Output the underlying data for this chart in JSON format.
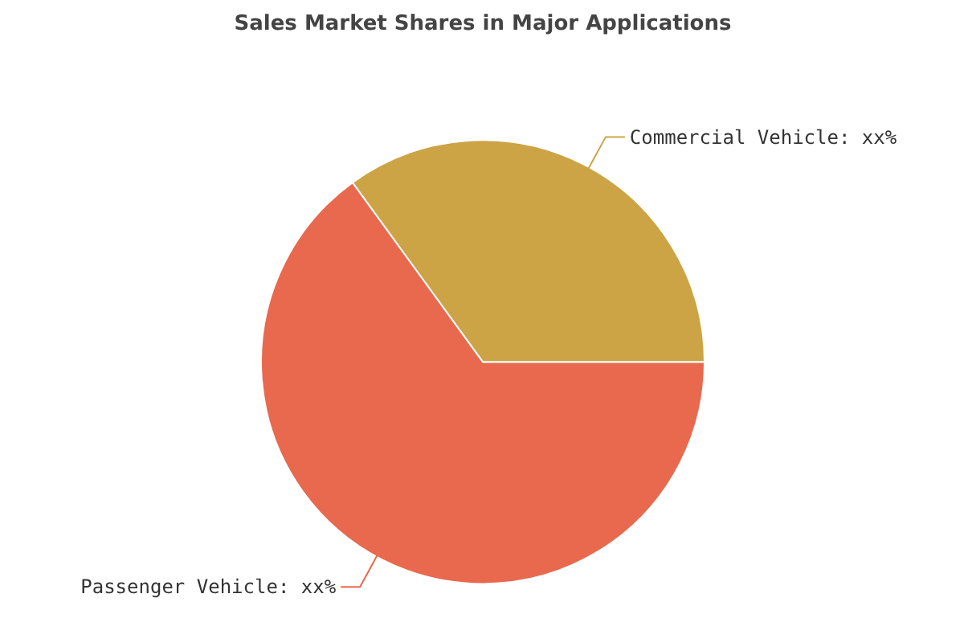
{
  "chart_data": {
    "type": "pie",
    "title": "Sales Market Shares in Major Applications",
    "categories": [
      "Commercial Vehicle",
      "Passenger Vehicle"
    ],
    "values": [
      35,
      65
    ],
    "value_labels": [
      "xx%",
      "xx%"
    ],
    "colors": [
      "#cca446",
      "#e8694d"
    ]
  }
}
